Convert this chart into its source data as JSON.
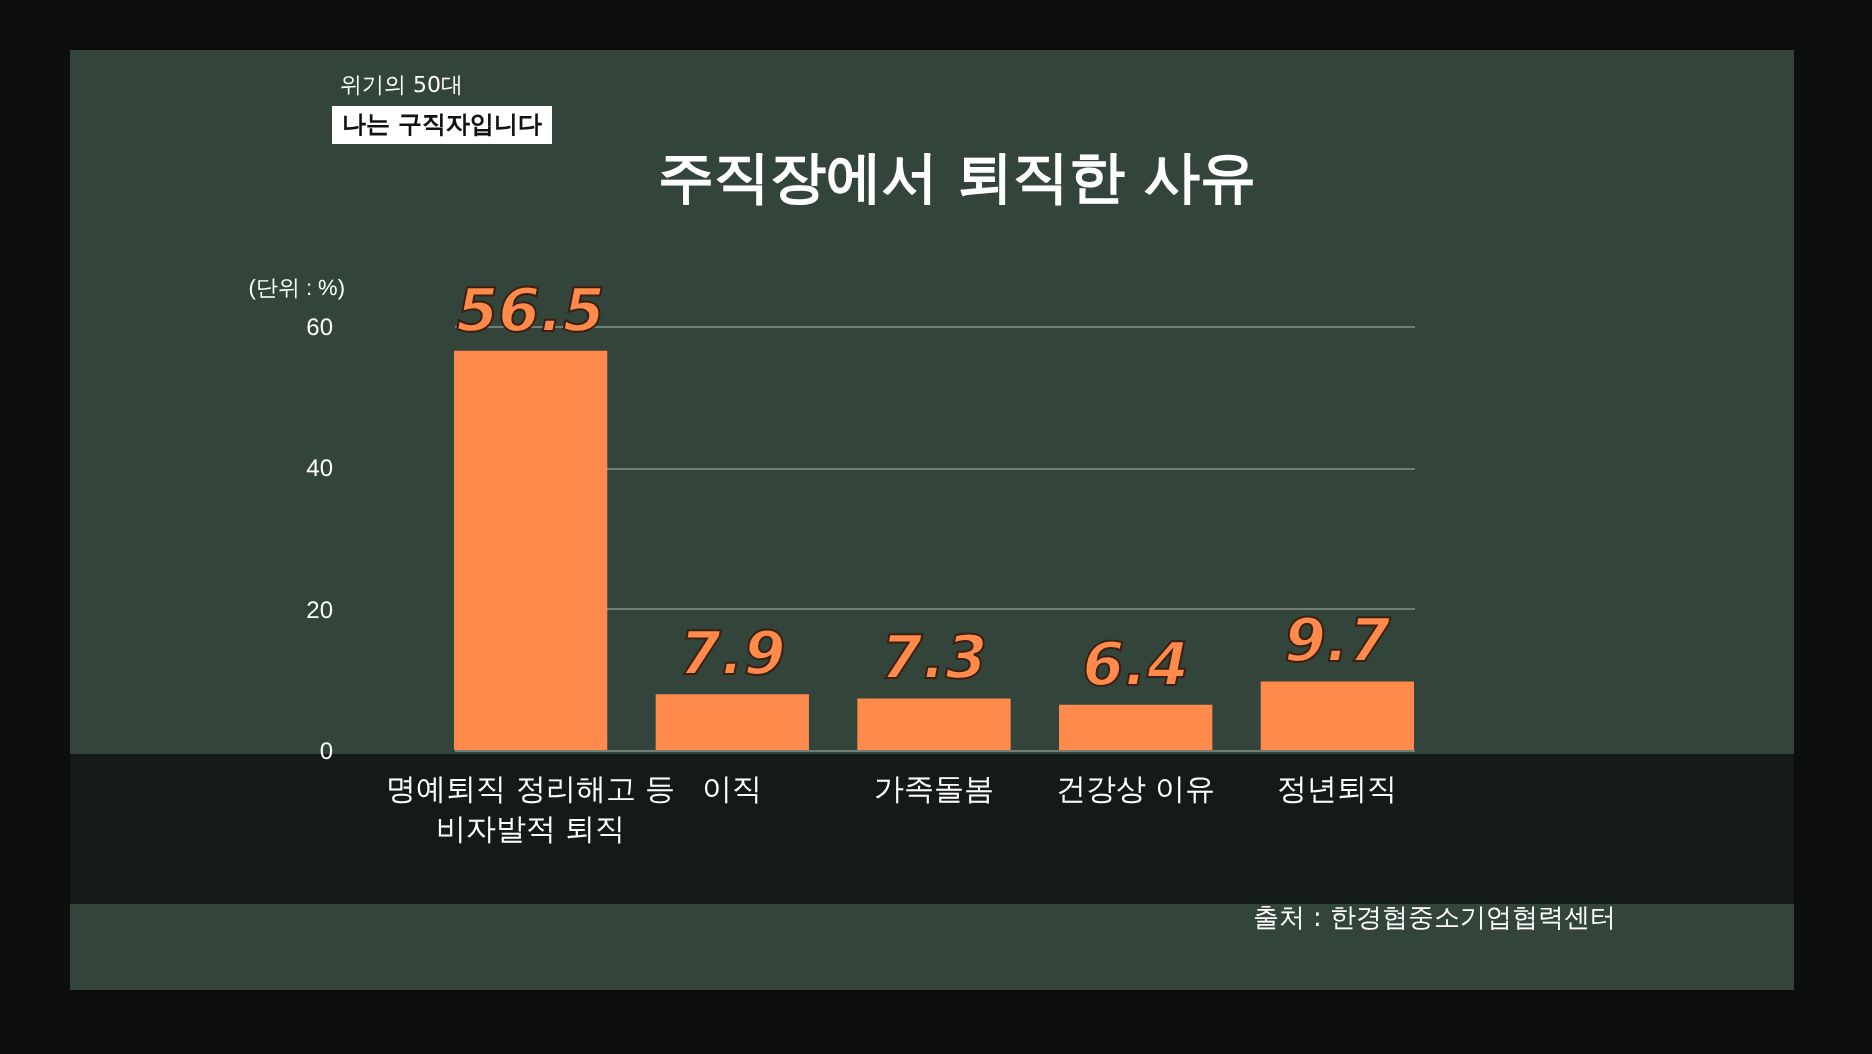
{
  "chart_data": {
    "type": "bar",
    "title": "주직장에서 퇴직한 사유",
    "ylabel": "(단위 : %)",
    "categories": [
      "명예퇴직 정리해고 등 비자발적 퇴직",
      "이직",
      "가족돌봄",
      "건강상 이유",
      "정년퇴직"
    ],
    "values": [
      56.5,
      7.9,
      7.3,
      6.4,
      9.7
    ],
    "color": "#ff8a4c",
    "ylim": [
      0,
      60
    ],
    "yticks": [
      0,
      20,
      40,
      60
    ],
    "grid": "y",
    "data_labels": true,
    "annotations": [
      "위기의 50대",
      "나는 구직자입니다",
      "출처 : 한경협중소기업협력센터"
    ]
  }
}
